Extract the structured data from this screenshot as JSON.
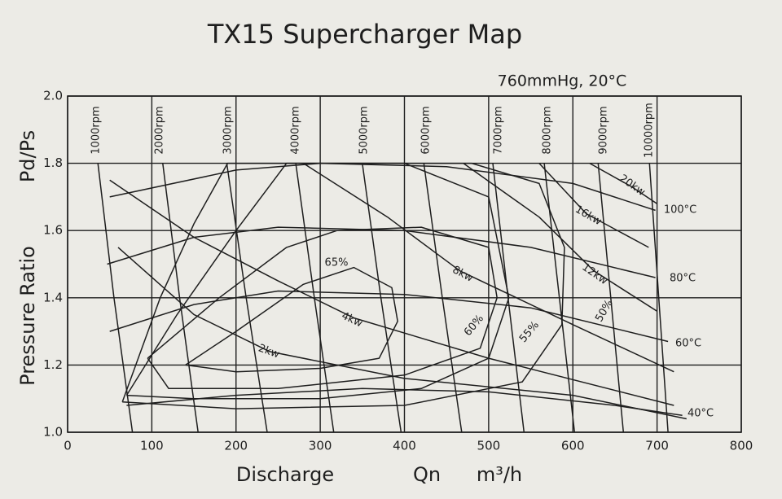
{
  "chart_data": {
    "type": "line",
    "title": "TX15 Supercharger Map",
    "subtitle": "760mmHg, 20°C",
    "x_label": "Discharge",
    "x_label_2": "Qn",
    "x_unit": "m³/h",
    "y_label": "Pressure Ratio",
    "y_label_2": "Pd/Ps",
    "xlim": [
      0,
      800
    ],
    "xticks": [
      0,
      100,
      200,
      300,
      400,
      500,
      600,
      700,
      800
    ],
    "ylim": [
      1.0,
      2.0
    ],
    "yticks": [
      {
        "value": 1.0,
        "label": "1.0"
      },
      {
        "value": 1.2,
        "label": "1.2"
      },
      {
        "value": 1.4,
        "label": "1.4"
      },
      {
        "value": 1.6,
        "label": "1.6"
      },
      {
        "value": 1.8,
        "label": "1.8"
      },
      {
        "value": 2.0,
        "label": "2.0"
      }
    ],
    "grid": true,
    "color": "#1e1e1e",
    "series": [
      {
        "name": "1000rpm",
        "x": [
          36,
          55,
          77
        ],
        "values": [
          1.8,
          1.4,
          1.0
        ]
      },
      {
        "name": "2000rpm",
        "x": [
          113,
          133,
          155
        ],
        "values": [
          1.8,
          1.4,
          1.0
        ]
      },
      {
        "name": "3000rpm",
        "x": [
          189,
          212,
          237
        ],
        "values": [
          1.8,
          1.4,
          1.0
        ]
      },
      {
        "name": "4000rpm",
        "x": [
          271,
          293,
          316
        ],
        "values": [
          1.8,
          1.4,
          1.0
        ]
      },
      {
        "name": "5000rpm",
        "x": [
          350,
          372,
          396
        ],
        "values": [
          1.8,
          1.4,
          1.0
        ]
      },
      {
        "name": "6000rpm",
        "x": [
          423,
          445,
          468
        ],
        "values": [
          1.8,
          1.4,
          1.0
        ]
      },
      {
        "name": "7000rpm",
        "x": [
          505,
          523,
          542
        ],
        "values": [
          1.8,
          1.4,
          1.0
        ]
      },
      {
        "name": "8000rpm",
        "x": [
          566,
          584,
          602
        ],
        "values": [
          1.8,
          1.4,
          1.0
        ]
      },
      {
        "name": "9000rpm",
        "x": [
          630,
          645,
          660
        ],
        "values": [
          1.8,
          1.4,
          1.0
        ]
      },
      {
        "name": "10000rpm",
        "x": [
          691,
          702,
          713
        ],
        "values": [
          1.8,
          1.4,
          1.0
        ]
      },
      {
        "name": "65%",
        "x": [
          140,
          200,
          280,
          340,
          385,
          392,
          370,
          300,
          200,
          140
        ],
        "values": [
          1.2,
          1.3,
          1.44,
          1.49,
          1.43,
          1.33,
          1.22,
          1.19,
          1.18,
          1.2
        ]
      },
      {
        "name": "60%",
        "x": [
          95,
          180,
          260,
          320,
          420,
          500,
          510,
          490,
          400,
          250,
          120,
          95
        ],
        "values": [
          1.22,
          1.4,
          1.55,
          1.6,
          1.61,
          1.55,
          1.4,
          1.25,
          1.17,
          1.13,
          1.13,
          1.22
        ]
      },
      {
        "name": "55%",
        "x": [
          70,
          130,
          200,
          260,
          400,
          500,
          524,
          500,
          420,
          300,
          150,
          70
        ],
        "values": [
          1.11,
          1.35,
          1.6,
          1.8,
          1.8,
          1.7,
          1.4,
          1.22,
          1.13,
          1.1,
          1.1,
          1.11
        ]
      },
      {
        "name": "50%",
        "x": [
          65,
          110,
          150,
          190,
          480,
          560,
          590,
          587,
          540,
          400,
          200,
          65
        ],
        "values": [
          1.09,
          1.4,
          1.62,
          1.8,
          1.8,
          1.74,
          1.55,
          1.32,
          1.15,
          1.08,
          1.07,
          1.09
        ]
      },
      {
        "name": "2kw",
        "x": [
          60,
          150,
          240,
          400,
          600,
          735
        ],
        "values": [
          1.55,
          1.35,
          1.24,
          1.16,
          1.11,
          1.04
        ]
      },
      {
        "name": "4kw",
        "x": [
          50,
          150,
          250,
          340,
          500,
          720
        ],
        "values": [
          1.75,
          1.58,
          1.45,
          1.34,
          1.22,
          1.08
        ]
      },
      {
        "name": "8kw",
        "x": [
          280,
          380,
          466,
          600,
          720
        ],
        "values": [
          1.8,
          1.64,
          1.48,
          1.32,
          1.18
        ]
      },
      {
        "name": "12kw",
        "x": [
          470,
          560,
          625,
          700
        ],
        "values": [
          1.8,
          1.64,
          1.48,
          1.36
        ]
      },
      {
        "name": "16kw",
        "x": [
          560,
          616,
          690
        ],
        "values": [
          1.8,
          1.65,
          1.55
        ]
      },
      {
        "name": "20kw",
        "x": [
          620,
          670,
          700
        ],
        "values": [
          1.8,
          1.73,
          1.68
        ]
      },
      {
        "name": "100°C",
        "x": [
          50,
          200,
          300,
          450,
          600,
          698
        ],
        "values": [
          1.7,
          1.78,
          1.8,
          1.79,
          1.74,
          1.66
        ]
      },
      {
        "name": "80°C",
        "x": [
          47,
          150,
          250,
          400,
          550,
          698
        ],
        "values": [
          1.5,
          1.58,
          1.61,
          1.6,
          1.55,
          1.46
        ]
      },
      {
        "name": "60°C",
        "x": [
          50,
          150,
          250,
          400,
          550,
          713
        ],
        "values": [
          1.3,
          1.38,
          1.42,
          1.41,
          1.37,
          1.27
        ]
      },
      {
        "name": "40°C",
        "x": [
          70,
          200,
          350,
          500,
          650,
          730
        ],
        "values": [
          1.08,
          1.11,
          1.13,
          1.12,
          1.08,
          1.05
        ]
      }
    ]
  }
}
